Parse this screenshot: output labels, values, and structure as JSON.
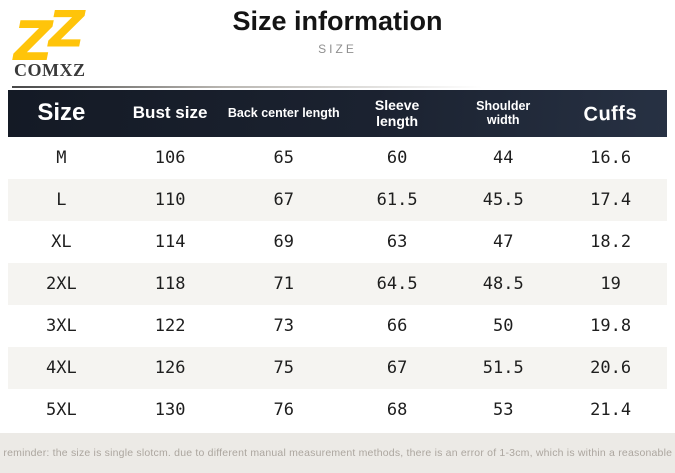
{
  "brand": {
    "name": "COMXZ",
    "logo_icon": "double-z-monogram",
    "logo_color": "#FFC40A"
  },
  "header": {
    "title": "Size information",
    "subtitle": "SIZE"
  },
  "table": {
    "columns": [
      "Size",
      "Bust size",
      "Back center length",
      "Sleeve length",
      "Shoulder width",
      "Cuffs"
    ],
    "rows": [
      [
        "M",
        "106",
        "65",
        "60",
        "44",
        "16.6"
      ],
      [
        "L",
        "110",
        "67",
        "61.5",
        "45.5",
        "17.4"
      ],
      [
        "XL",
        "114",
        "69",
        "63",
        "47",
        "18.2"
      ],
      [
        "2XL",
        "118",
        "71",
        "64.5",
        "48.5",
        "19"
      ],
      [
        "3XL",
        "122",
        "73",
        "66",
        "50",
        "19.8"
      ],
      [
        "4XL",
        "126",
        "75",
        "67",
        "51.5",
        "20.6"
      ],
      [
        "5XL",
        "130",
        "76",
        "68",
        "53",
        "21.4"
      ]
    ]
  },
  "chart_data": {
    "type": "table",
    "title": "Size information",
    "columns": [
      "Size",
      "Bust size",
      "Back center length",
      "Sleeve length",
      "Shoulder width",
      "Cuffs"
    ],
    "rows": [
      [
        "M",
        "106",
        "65",
        "60",
        "44",
        "16.6"
      ],
      [
        "L",
        "110",
        "67",
        "61.5",
        "45.5",
        "17.4"
      ],
      [
        "XL",
        "114",
        "69",
        "63",
        "47",
        "18.2"
      ],
      [
        "2XL",
        "118",
        "71",
        "64.5",
        "48.5",
        "19"
      ],
      [
        "3XL",
        "122",
        "73",
        "66",
        "50",
        "19.8"
      ],
      [
        "4XL",
        "126",
        "75",
        "67",
        "51.5",
        "20.6"
      ],
      [
        "5XL",
        "130",
        "76",
        "68",
        "53",
        "21.4"
      ]
    ]
  },
  "footer": {
    "reminder": "Warm reminder: the size is single slotcm. due to different manual measurement methods, there is an error of 1-3cm, which is within a reasonable range"
  },
  "colors": {
    "header_bar": "#1B2230",
    "row_stripe": "#F5F4F1",
    "footer_bg": "#ECEAE6",
    "accent_gold": "#FFC40A"
  }
}
